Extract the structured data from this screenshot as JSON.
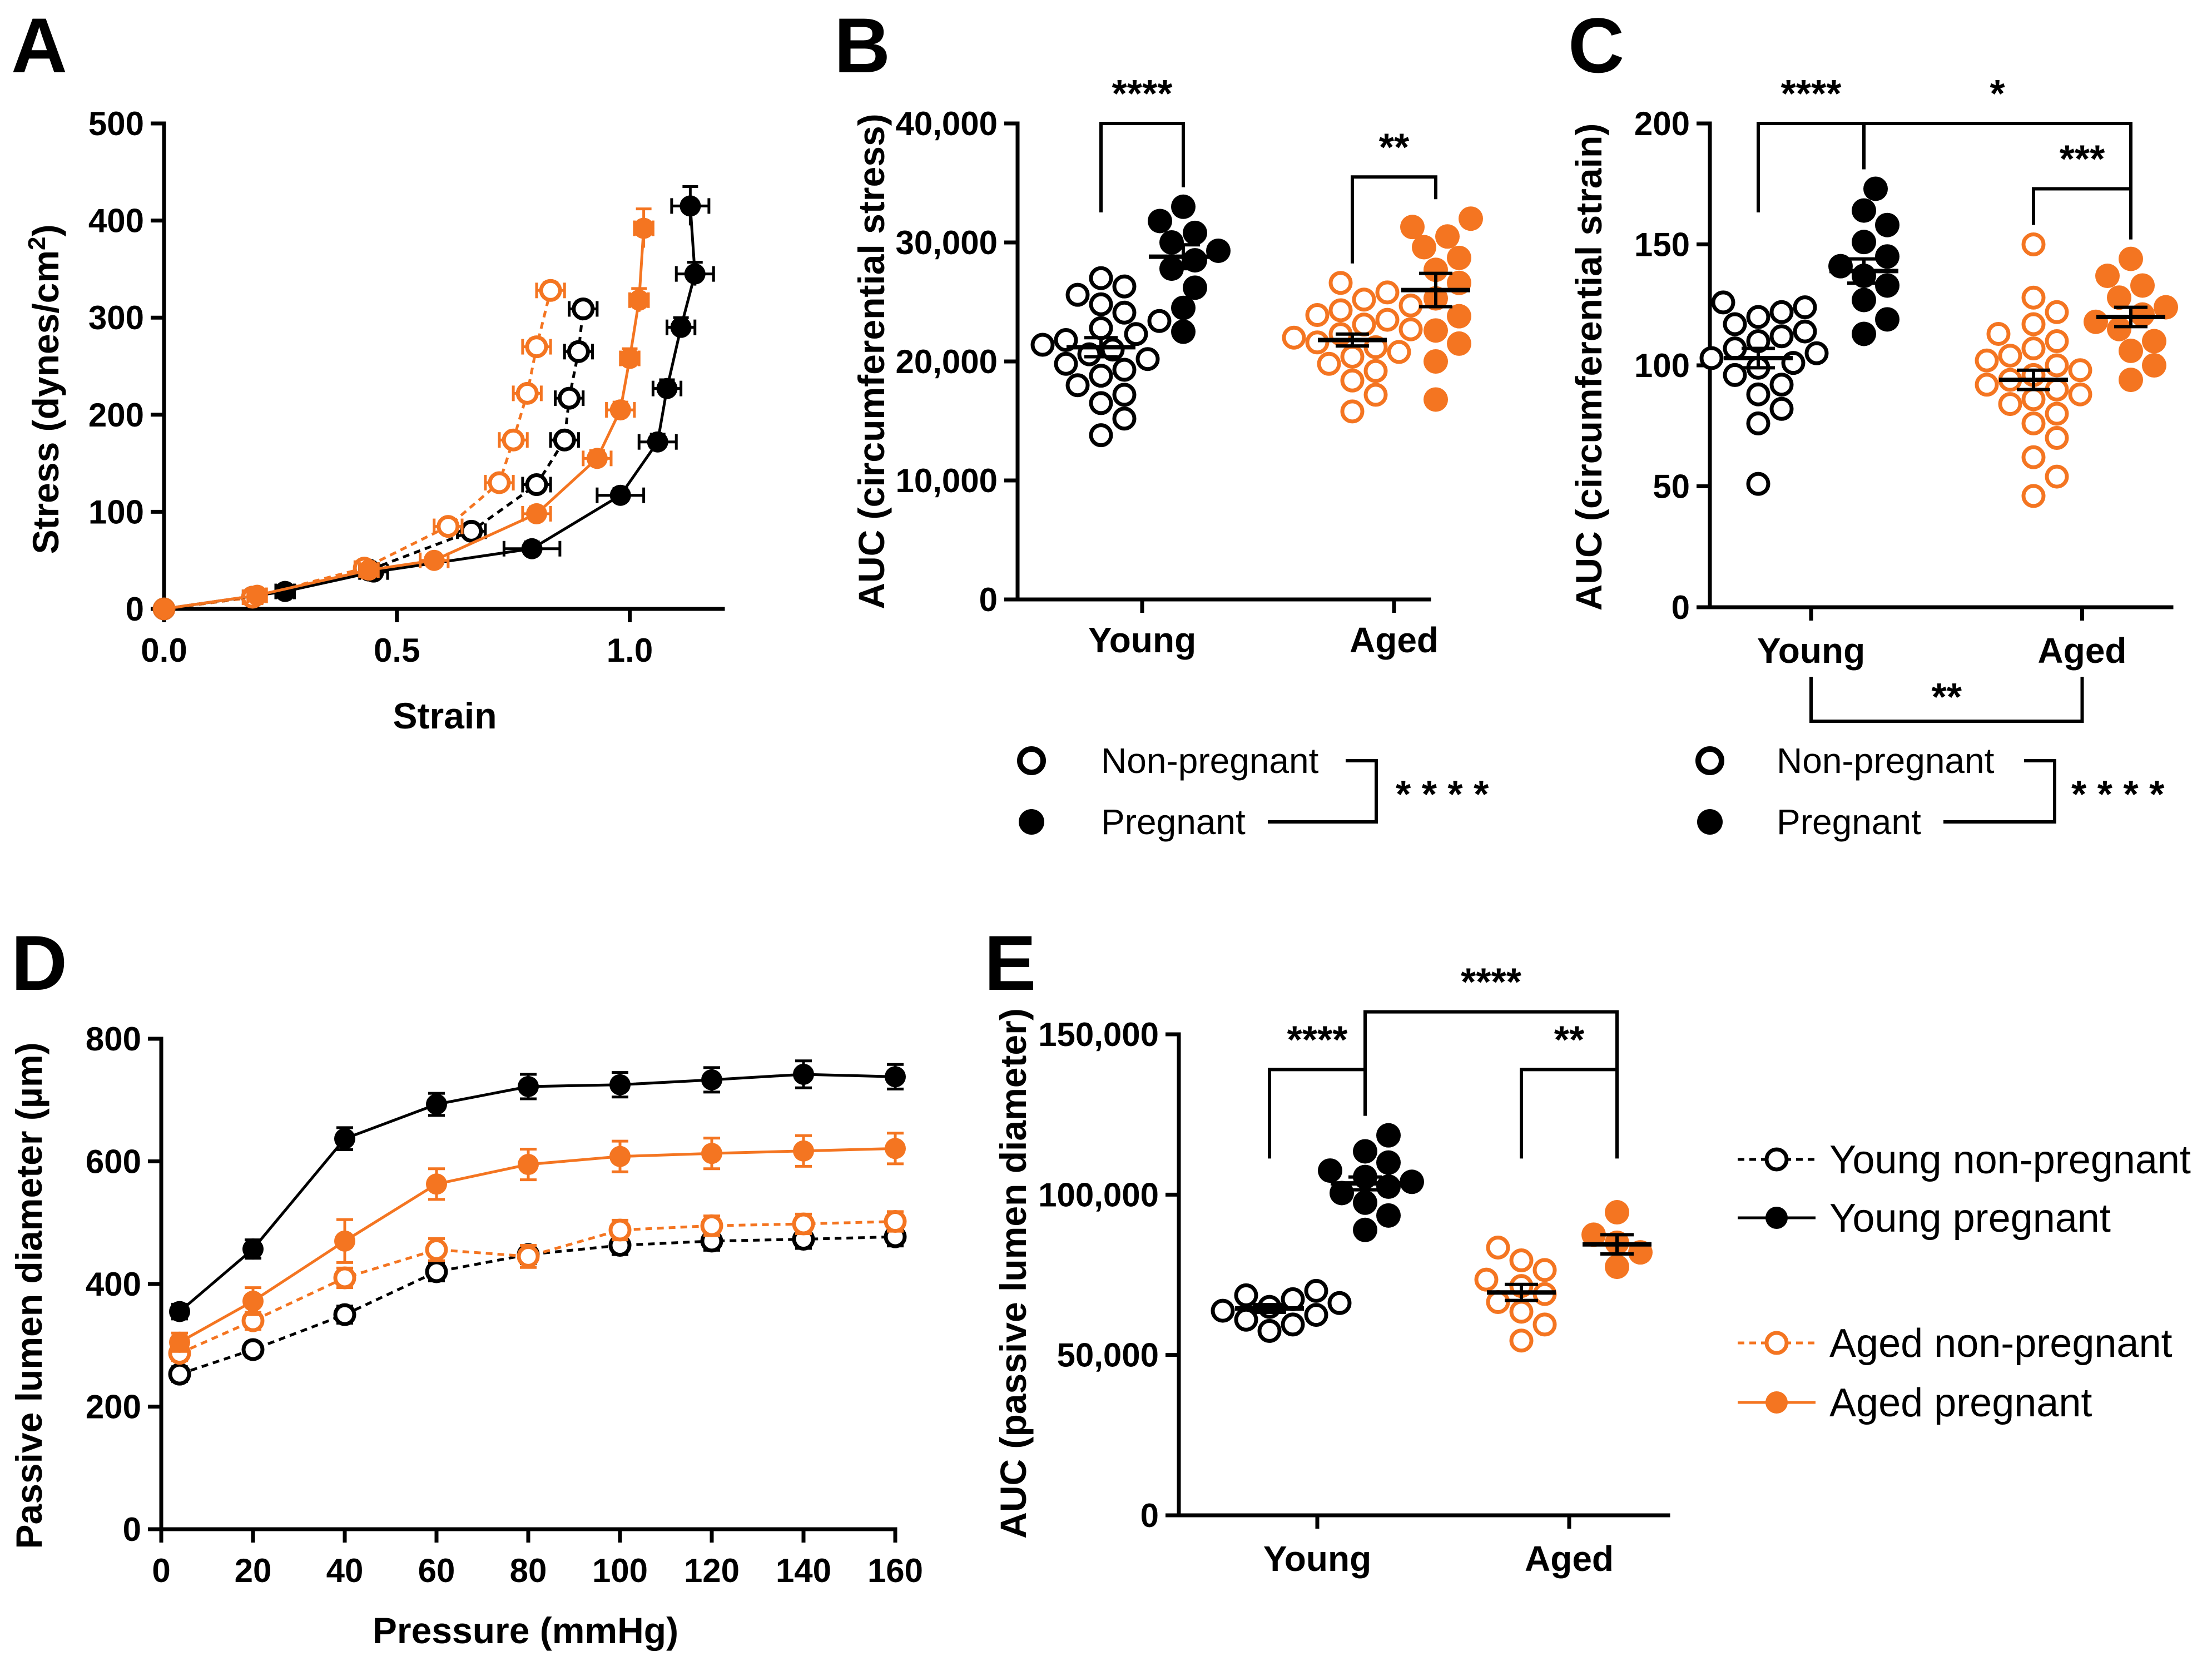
{
  "colors": {
    "young": "#000000",
    "aged": "#F47521",
    "axis": "#000000"
  },
  "panels": {
    "A": {
      "label": "A"
    },
    "B": {
      "label": "B"
    },
    "C": {
      "label": "C"
    },
    "D": {
      "label": "D"
    },
    "E": {
      "label": "E"
    }
  },
  "legend_bc": {
    "nonpregnant": "Non-pregnant",
    "pregnant": "Pregnant",
    "sig": "* * * *"
  },
  "legend_de": {
    "young_np": "Young non-pregnant",
    "young_p": "Young pregnant",
    "aged_np": "Aged non-pregnant",
    "aged_p": "Aged pregnant"
  },
  "chart_data": [
    {
      "panel": "A",
      "type": "line",
      "xlabel": "Strain",
      "ylabel": "Stress (dynes/cm",
      "ylabel_sup": "2",
      "ylabel_end": ")",
      "xlim": [
        0,
        1.2
      ],
      "ylim": [
        0,
        500
      ],
      "xticks": [
        0.0,
        0.5,
        1.0
      ],
      "xtick_labels": [
        "0.0",
        "0.5",
        "1.0"
      ],
      "yticks": [
        0,
        100,
        200,
        300,
        400,
        500
      ],
      "ytick_labels": [
        "0",
        "100",
        "200",
        "300",
        "400",
        "500"
      ],
      "series": [
        {
          "name": "Young non-pregnant",
          "group": "young",
          "filled": false,
          "dashed": true,
          "points": [
            [
              0,
              0,
              0.01,
              0
            ],
            [
              0.19,
              12,
              0.02,
              3
            ],
            [
              0.44,
              40,
              0.02,
              5
            ],
            [
              0.66,
              80,
              0.03,
              6
            ],
            [
              0.8,
              128,
              0.03,
              6
            ],
            [
              0.86,
              174,
              0.03,
              7
            ],
            [
              0.87,
              217,
              0.03,
              7
            ],
            [
              0.89,
              265,
              0.03,
              8
            ],
            [
              0.9,
              309,
              0.03,
              8
            ]
          ]
        },
        {
          "name": "Young pregnant",
          "group": "young",
          "filled": true,
          "dashed": false,
          "points": [
            [
              0,
              0,
              0.01,
              0
            ],
            [
              0.26,
              18,
              0.02,
              3
            ],
            [
              0.45,
              38,
              0.03,
              5
            ],
            [
              0.79,
              62,
              0.06,
              7
            ],
            [
              0.98,
              117,
              0.05,
              7
            ],
            [
              1.06,
              172,
              0.04,
              8
            ],
            [
              1.08,
              227,
              0.03,
              9
            ],
            [
              1.11,
              290,
              0.03,
              10
            ],
            [
              1.14,
              345,
              0.04,
              12
            ],
            [
              1.13,
              415,
              0.04,
              20
            ]
          ]
        },
        {
          "name": "Aged non-pregnant",
          "group": "aged",
          "filled": false,
          "dashed": true,
          "points": [
            [
              0,
              0,
              0.01,
              0
            ],
            [
              0.19,
              12,
              0.02,
              3
            ],
            [
              0.43,
              42,
              0.02,
              5
            ],
            [
              0.61,
              85,
              0.03,
              6
            ],
            [
              0.72,
              130,
              0.03,
              6
            ],
            [
              0.75,
              174,
              0.03,
              7
            ],
            [
              0.78,
              222,
              0.03,
              7
            ],
            [
              0.8,
              270,
              0.03,
              8
            ],
            [
              0.83,
              328,
              0.03,
              8
            ]
          ]
        },
        {
          "name": "Aged pregnant",
          "group": "aged",
          "filled": true,
          "dashed": false,
          "points": [
            [
              0,
              0,
              0.01,
              0
            ],
            [
              0.2,
              14,
              0.02,
              3
            ],
            [
              0.44,
              40,
              0.02,
              5
            ],
            [
              0.58,
              50,
              0.03,
              5
            ],
            [
              0.8,
              98,
              0.03,
              7
            ],
            [
              0.93,
              155,
              0.03,
              8
            ],
            [
              0.98,
              205,
              0.03,
              8
            ],
            [
              1.0,
              258,
              0.02,
              10
            ],
            [
              1.02,
              318,
              0.02,
              12
            ],
            [
              1.03,
              392,
              0.02,
              20
            ]
          ]
        }
      ]
    },
    {
      "panel": "B",
      "type": "scatter",
      "ylabel": "AUC (circumferential stress)",
      "ylim": [
        0,
        40000
      ],
      "yticks": [
        0,
        10000,
        20000,
        30000,
        40000
      ],
      "ytick_labels": [
        "0",
        "10,000",
        "20,000",
        "30,000",
        "40,000"
      ],
      "categories": [
        "Young",
        "Aged"
      ],
      "groups": [
        {
          "name": "Young non-pregnant",
          "group": "young",
          "filled": false,
          "mean": 21200,
          "sem": 800,
          "values": [
            13800,
            15200,
            16500,
            17200,
            18000,
            18800,
            19300,
            19800,
            20200,
            20600,
            21000,
            21400,
            21800,
            22300,
            22800,
            23400,
            24100,
            24800,
            25600,
            26300,
            27000
          ]
        },
        {
          "name": "Young pregnant",
          "group": "young",
          "filled": true,
          "mean": 28800,
          "sem": 1000,
          "values": [
            22500,
            24500,
            26200,
            27800,
            28500,
            29300,
            30000,
            30800,
            31800,
            33000
          ]
        },
        {
          "name": "Aged non-pregnant",
          "group": "aged",
          "filled": false,
          "mean": 21800,
          "sem": 500,
          "values": [
            15800,
            17200,
            18400,
            19200,
            19800,
            20400,
            20800,
            21200,
            21600,
            22000,
            22300,
            22700,
            23100,
            23500,
            23900,
            24300,
            24700,
            25200,
            25800,
            26600
          ]
        },
        {
          "name": "Aged pregnant",
          "group": "aged",
          "filled": true,
          "mean": 26000,
          "sem": 1400,
          "values": [
            16800,
            20000,
            21500,
            22600,
            23800,
            25300,
            26600,
            27700,
            28700,
            29600,
            30500,
            31300,
            32000
          ]
        }
      ],
      "annotations": [
        {
          "text": "****",
          "from": 0,
          "to": 1,
          "y": 40000
        },
        {
          "text": "**",
          "from": 2,
          "to": 3,
          "y": 35500
        }
      ]
    },
    {
      "panel": "C",
      "type": "scatter",
      "ylabel": "AUC (circumferential strain)",
      "ylim": [
        0,
        200
      ],
      "yticks": [
        0,
        50,
        100,
        150,
        200
      ],
      "ytick_labels": [
        "0",
        "50",
        "100",
        "150",
        "200"
      ],
      "categories": [
        "Young",
        "Aged"
      ],
      "groups": [
        {
          "name": "Young non-pregnant",
          "group": "young",
          "filled": false,
          "mean": 103,
          "sem": 4,
          "values": [
            51,
            76,
            82,
            88,
            92,
            96,
            99,
            101,
            103,
            105,
            107,
            110,
            112,
            114,
            117,
            120,
            122,
            124,
            126
          ]
        },
        {
          "name": "Young pregnant",
          "group": "young",
          "filled": true,
          "mean": 139,
          "sem": 5,
          "values": [
            113,
            119,
            127,
            133,
            137,
            141,
            145,
            151,
            158,
            164,
            173
          ]
        },
        {
          "name": "Aged non-pregnant",
          "group": "aged",
          "filled": false,
          "mean": 94,
          "sem": 4,
          "values": [
            46,
            54,
            62,
            70,
            76,
            80,
            84,
            86,
            88,
            90,
            92,
            94,
            96,
            98,
            100,
            102,
            104,
            107,
            110,
            113,
            117,
            122,
            128,
            150
          ]
        },
        {
          "name": "Aged pregnant",
          "group": "aged",
          "filled": true,
          "mean": 120,
          "sem": 4,
          "values": [
            94,
            100,
            106,
            110,
            115,
            118,
            121,
            124,
            128,
            133,
            137,
            144
          ]
        }
      ],
      "annotations": [
        {
          "text": "****",
          "from": 0,
          "to": 1,
          "y": 200
        },
        {
          "text": "*",
          "from": 1,
          "to": 3,
          "y": 200
        },
        {
          "text": "***",
          "from": 2,
          "to": 3,
          "y": 173
        },
        {
          "text": "**",
          "from": 0,
          "to": 2,
          "y": -40,
          "below": true
        }
      ]
    },
    {
      "panel": "D",
      "type": "line",
      "xlabel": "Pressure (mmHg)",
      "ylabel": "Passive lumen diameter (µm)",
      "xlim": [
        0,
        160
      ],
      "ylim": [
        0,
        800
      ],
      "xticks": [
        0,
        20,
        40,
        60,
        80,
        100,
        120,
        140,
        160
      ],
      "xtick_labels": [
        "0",
        "20",
        "40",
        "60",
        "80",
        "100",
        "120",
        "140",
        "160"
      ],
      "yticks": [
        0,
        200,
        400,
        600,
        800
      ],
      "ytick_labels": [
        "0",
        "200",
        "400",
        "600",
        "800"
      ],
      "x": [
        4,
        20,
        40,
        60,
        80,
        100,
        120,
        140,
        160
      ],
      "series": [
        {
          "name": "Young non-pregnant",
          "group": "young",
          "filled": false,
          "dashed": true,
          "values": [
            253,
            293,
            350,
            420,
            448,
            463,
            470,
            473,
            477
          ],
          "err": [
            12,
            12,
            14,
            15,
            15,
            15,
            15,
            15,
            15
          ]
        },
        {
          "name": "Young pregnant",
          "group": "young",
          "filled": true,
          "dashed": false,
          "values": [
            355,
            457,
            637,
            693,
            722,
            725,
            733,
            742,
            738
          ],
          "err": [
            12,
            15,
            18,
            18,
            20,
            20,
            20,
            22,
            20
          ]
        },
        {
          "name": "Aged non-pregnant",
          "group": "aged",
          "filled": false,
          "dashed": true,
          "values": [
            287,
            340,
            410,
            456,
            445,
            488,
            495,
            498,
            502
          ],
          "err": [
            12,
            14,
            16,
            18,
            18,
            16,
            16,
            16,
            16
          ]
        },
        {
          "name": "Aged pregnant",
          "group": "aged",
          "filled": true,
          "dashed": false,
          "values": [
            305,
            372,
            470,
            563,
            595,
            608,
            613,
            617,
            621
          ],
          "err": [
            15,
            22,
            35,
            25,
            25,
            25,
            25,
            25,
            25
          ]
        }
      ]
    },
    {
      "panel": "E",
      "type": "scatter",
      "ylabel": "AUC (passive lumen diameter)",
      "ylim": [
        0,
        150000
      ],
      "yticks": [
        0,
        50000,
        100000,
        150000
      ],
      "ytick_labels": [
        "0",
        "50,000",
        "100,000",
        "150,000"
      ],
      "categories": [
        "Young",
        "Aged"
      ],
      "groups": [
        {
          "name": "Young non-pregnant",
          "group": "young",
          "filled": false,
          "mean": 64500,
          "sem": 1200,
          "values": [
            57500,
            59500,
            61000,
            62500,
            63800,
            65000,
            66200,
            67400,
            68600,
            70000
          ]
        },
        {
          "name": "Young pregnant",
          "group": "young",
          "filled": true,
          "mean": 103500,
          "sem": 2000,
          "values": [
            89000,
            93500,
            97500,
            100500,
            102500,
            104000,
            105500,
            107500,
            110000,
            113500,
            118500
          ]
        },
        {
          "name": "Aged non-pregnant",
          "group": "aged",
          "filled": false,
          "mean": 69500,
          "sem": 2500,
          "values": [
            54500,
            59500,
            63500,
            66500,
            69000,
            71500,
            73500,
            76500,
            79500,
            83500
          ]
        },
        {
          "name": "Aged pregnant",
          "group": "aged",
          "filled": true,
          "mean": 84500,
          "sem": 3000,
          "values": [
            77500,
            82000,
            85000,
            87500,
            94500
          ]
        }
      ],
      "annotations": [
        {
          "text": "****",
          "from": 0,
          "to": 1,
          "y": 139000
        },
        {
          "text": "****",
          "from": 1,
          "to": 3,
          "y": 157000
        },
        {
          "text": "**",
          "from": 2,
          "to": 3,
          "y": 139000
        }
      ]
    }
  ]
}
